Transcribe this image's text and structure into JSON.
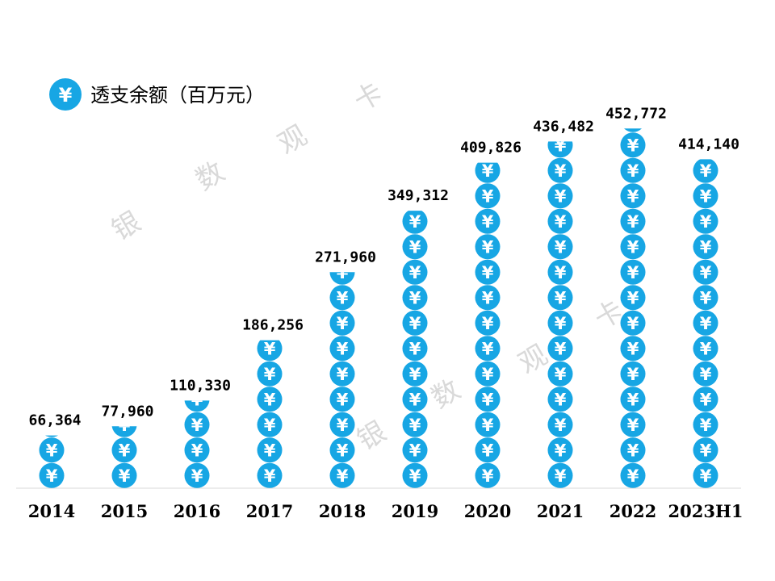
{
  "chart_data": {
    "type": "bar",
    "categories": [
      "2014",
      "2015",
      "2016",
      "2017",
      "2018",
      "2019",
      "2020",
      "2021",
      "2022",
      "2023H1"
    ],
    "values": [
      66364,
      77960,
      110330,
      186256,
      271960,
      349312,
      409826,
      436482,
      452772,
      414140
    ],
    "value_labels": [
      "66,364",
      "77,960",
      "110,330",
      "186,256",
      "271,960",
      "349,312",
      "409,826",
      "436,482",
      "452,772",
      "414,140"
    ],
    "series": [
      {
        "name": "透支余额（百万元）"
      }
    ],
    "units_per_icon": 32000,
    "ylim": [
      0,
      452772
    ],
    "grid": false,
    "legend_position": "top-left"
  },
  "legend": {
    "icon": "yen-coin-icon",
    "label": "透支余额（百万元）"
  },
  "watermark": {
    "chars": [
      "银",
      "数",
      "观",
      "卡"
    ]
  },
  "colors": {
    "coin": "#17a6e4",
    "axis": "#d9d9d9",
    "watermark": "#d9d9d9"
  }
}
